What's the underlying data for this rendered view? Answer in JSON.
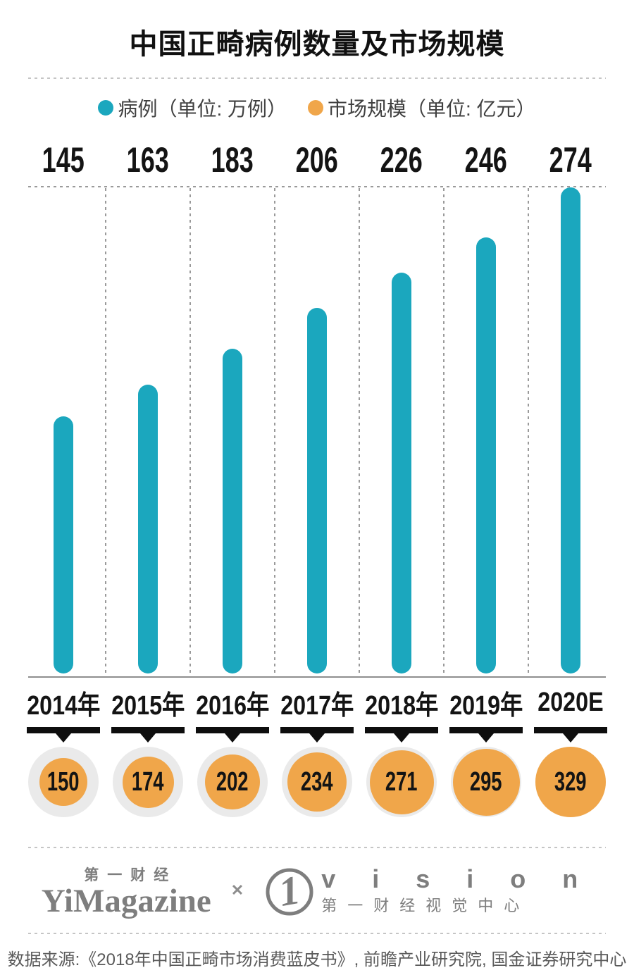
{
  "title": "中国正畸病例数量及市场规模",
  "legend": {
    "item1": {
      "label": "病例（单位: 万例）",
      "color": "#1BA7BE"
    },
    "item2": {
      "label": "市场规模（单位: 亿元）",
      "color": "#F0A64A"
    }
  },
  "chart_data": {
    "type": "bar",
    "title": "中国正畸病例数量及市场规模",
    "categories": [
      "2014年",
      "2015年",
      "2016年",
      "2017年",
      "2018年",
      "2019年",
      "2020E"
    ],
    "series": [
      {
        "name": "病例（单位: 万例）",
        "display": "bar",
        "color": "#1BA7BE",
        "values": [
          145,
          163,
          183,
          206,
          226,
          246,
          274
        ]
      },
      {
        "name": "市场规模（单位: 亿元）",
        "display": "circle",
        "color": "#F0A64A",
        "circle_bg": "#EAEAEA",
        "values": [
          150,
          174,
          202,
          234,
          271,
          295,
          329
        ]
      }
    ],
    "ylim": [
      0,
      274
    ],
    "grid": "vertical-dashed",
    "legend_position": "top"
  },
  "footer": {
    "logo1_top": "第一财经",
    "logo1_main": "YiMagazine",
    "cross_label": "✕",
    "logo2_mark": "1",
    "logo2_main": "v i s i o n",
    "logo2_sub": "第一财经视觉中心"
  },
  "source": "数据来源:《2018年中国正畸市场消费蓝皮书》, 前瞻产业研究院, 国金证券研究中心"
}
